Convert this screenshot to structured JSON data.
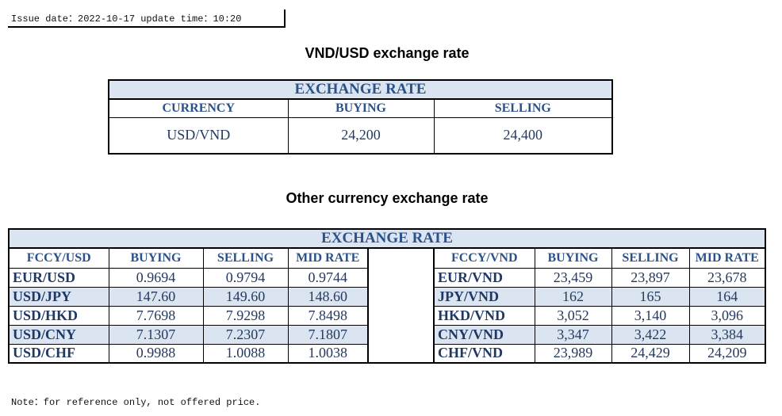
{
  "issue": "Issue date：2022-10-17 update time：10:20",
  "title_main": "VND/USD exchange rate",
  "table_main": {
    "header": "EXCHANGE RATE",
    "columns": [
      "CURRENCY",
      "BUYING",
      "SELLING"
    ],
    "rows": [
      [
        "USD/VND",
        "24,200",
        "24,400"
      ]
    ]
  },
  "title_other": "Other currency exchange rate",
  "table_other": {
    "header": "EXCHANGE RATE",
    "left_columns": [
      "FCCY/USD",
      "BUYING",
      "SELLING",
      "MID RATE"
    ],
    "left_rows": [
      [
        "EUR/USD",
        "0.9694",
        "0.9794",
        "0.9744"
      ],
      [
        "USD/JPY",
        "147.60",
        "149.60",
        "148.60"
      ],
      [
        "USD/HKD",
        "7.7698",
        "7.9298",
        "7.8498"
      ],
      [
        "USD/CNY",
        "7.1307",
        "7.2307",
        "7.1807"
      ],
      [
        "USD/CHF",
        "0.9988",
        "1.0088",
        "1.0038"
      ]
    ],
    "right_columns": [
      "FCCY/VND",
      "BUYING",
      "SELLING",
      "MID RATE"
    ],
    "right_rows": [
      [
        "EUR/VND",
        "23,459",
        "23,897",
        "23,678"
      ],
      [
        "JPY/VND",
        "162",
        "165",
        "164"
      ],
      [
        "HKD/VND",
        "3,052",
        "3,140",
        "3,096"
      ],
      [
        "CNY/VND",
        "3,347",
        "3,422",
        "3,384"
      ],
      [
        "CHF/VND",
        "23,989",
        "24,429",
        "24,209"
      ]
    ]
  },
  "note": "Note：for reference only, not offered price."
}
